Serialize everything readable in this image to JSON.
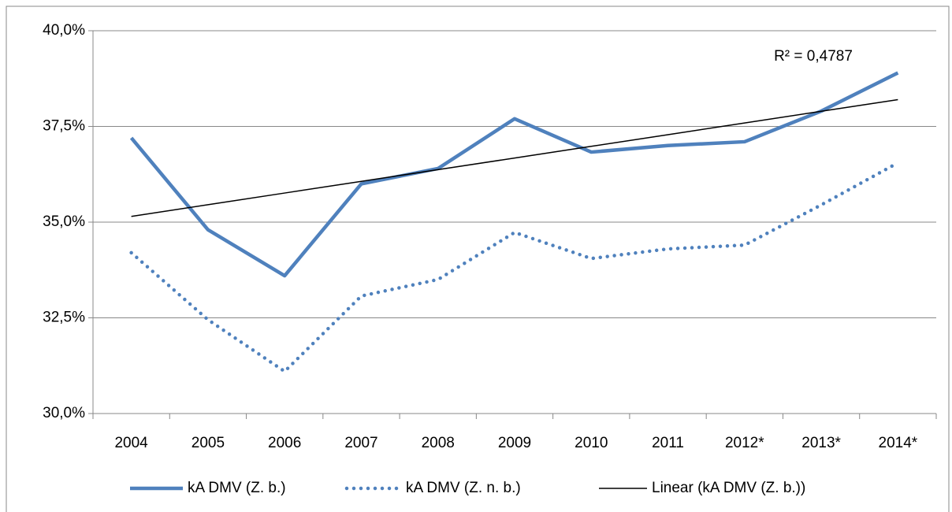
{
  "chart_data": {
    "type": "line",
    "categories": [
      "2004",
      "2005",
      "2006",
      "2007",
      "2008",
      "2009",
      "2010",
      "2011",
      "2012*",
      "2013*",
      "2014*"
    ],
    "series": [
      {
        "name": "kA DMV (Z. b.)",
        "color": "#4f81bd",
        "line_style": "solid",
        "values": [
          37.2,
          34.8,
          33.6,
          36.0,
          36.4,
          37.7,
          36.83,
          37.0,
          37.1,
          37.9,
          38.9
        ]
      },
      {
        "name": "kA DMV (Z. n. b.)",
        "color": "#4f81bd",
        "line_style": "dotted",
        "values": [
          34.2,
          32.45,
          31.1,
          33.07,
          33.5,
          34.73,
          34.05,
          34.3,
          34.4,
          35.45,
          36.55
        ]
      },
      {
        "name": "Linear (kA DMV (Z. b.))",
        "color": "#000000",
        "line_style": "thin",
        "values": [
          35.15,
          35.455,
          35.76,
          36.065,
          36.37,
          36.675,
          36.98,
          37.285,
          37.59,
          37.895,
          38.2
        ]
      }
    ],
    "annotation": "R² = 0,4787",
    "ylim": [
      30,
      40
    ],
    "yticks": [
      {
        "value": 30,
        "label": "30,0%"
      },
      {
        "value": 32.5,
        "label": "32,5%"
      },
      {
        "value": 35,
        "label": "35,0%"
      },
      {
        "value": 37.5,
        "label": "37,5%"
      },
      {
        "value": 40,
        "label": "40,0%"
      }
    ],
    "grid": true,
    "legend": "bottom"
  }
}
